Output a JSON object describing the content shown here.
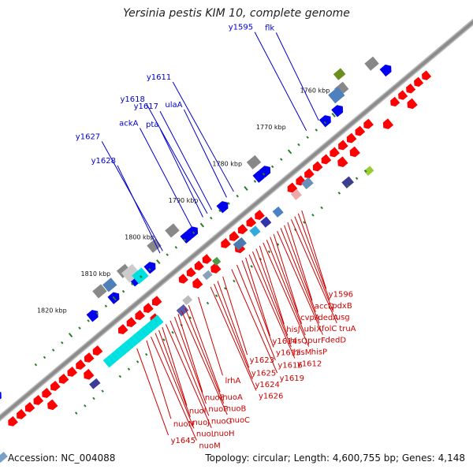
{
  "title": "Yersinia pestis KIM 10, complete genome",
  "footer": {
    "accession": "Accession: NC_004088",
    "summary": "Topology: circular; Length: 4,600,755 bp; Genes: 4,148"
  },
  "colors": {
    "forward_label": "#0000cc",
    "reverse_label": "#cc0000",
    "backbone": "#8c8c8c",
    "tick": "#2a7d2a",
    "cds_reverse": "#ff0000",
    "cds_forward": "#0000ee",
    "gc_cyan": "#00e0e0"
  },
  "ticks": [
    {
      "label": "1760 kbp",
      "pos": 1760
    },
    {
      "label": "1770 kbp",
      "pos": 1770
    },
    {
      "label": "1780 kbp",
      "pos": 1780
    },
    {
      "label": "1790 kbp",
      "pos": 1790
    },
    {
      "label": "1800 kbp",
      "pos": 1800
    },
    {
      "label": "1810 kbp",
      "pos": 1810
    },
    {
      "label": "1820 kbp",
      "pos": 1820
    }
  ],
  "forward_genes": [
    {
      "label": "flk",
      "pos": 1762.6
    },
    {
      "label": "y1595",
      "pos": 1765.4
    },
    {
      "label": "y1611",
      "pos": 1782.0
    },
    {
      "label": "ulaA",
      "pos": 1783.6
    },
    {
      "label": "y1617",
      "pos": 1787.0
    },
    {
      "label": "y1618",
      "pos": 1788.0
    },
    {
      "label": "pta",
      "pos": 1789.0
    },
    {
      "label": "ackA",
      "pos": 1791.6
    },
    {
      "label": "y1627",
      "pos": 1798.2
    },
    {
      "label": "y1628",
      "pos": 1798.8
    }
  ],
  "reverse_genes": [
    {
      "label": "y1596",
      "pos": 1775.0
    },
    {
      "label": "pdxB",
      "pos": 1775.8
    },
    {
      "label": "usg",
      "pos": 1776.6
    },
    {
      "label": "truA",
      "pos": 1777.4
    },
    {
      "label": "accD",
      "pos": 1778.2
    },
    {
      "label": "dedA",
      "pos": 1779.0
    },
    {
      "label": "folC",
      "pos": 1779.8
    },
    {
      "label": "dedD",
      "pos": 1780.6
    },
    {
      "label": "cvpA",
      "pos": 1781.4
    },
    {
      "label": "ubiX",
      "pos": 1782.2
    },
    {
      "label": "purF",
      "pos": 1783.0
    },
    {
      "label": "hisP",
      "pos": 1783.8
    },
    {
      "label": "hisJ",
      "pos": 1784.6
    },
    {
      "label": "hisQ",
      "pos": 1785.4
    },
    {
      "label": "hisM",
      "pos": 1786.2
    },
    {
      "label": "y1612",
      "pos": 1787.0
    },
    {
      "label": "y1614",
      "pos": 1787.8
    },
    {
      "label": "y1613",
      "pos": 1788.6
    },
    {
      "label": "y1616",
      "pos": 1789.8
    },
    {
      "label": "y1619",
      "pos": 1791.0
    },
    {
      "label": "y1623",
      "pos": 1793.0
    },
    {
      "label": "y1625",
      "pos": 1794.2
    },
    {
      "label": "y1624",
      "pos": 1795.0
    },
    {
      "label": "y1626",
      "pos": 1795.8
    },
    {
      "label": "lrhA",
      "pos": 1798.6
    },
    {
      "label": "nuoA",
      "pos": 1800.8
    },
    {
      "label": "nuoB",
      "pos": 1801.6
    },
    {
      "label": "nuoC",
      "pos": 1802.4
    },
    {
      "label": "nuoE",
      "pos": 1803.2
    },
    {
      "label": "nuoF",
      "pos": 1804.0
    },
    {
      "label": "nuoG",
      "pos": 1805.0
    },
    {
      "label": "nuoH",
      "pos": 1806.0
    },
    {
      "label": "nuoI",
      "pos": 1806.8
    },
    {
      "label": "nuoJ",
      "pos": 1807.6
    },
    {
      "label": "nuoL",
      "pos": 1808.4
    },
    {
      "label": "nuoM",
      "pos": 1809.4
    },
    {
      "label": "nuoN",
      "pos": 1810.4
    },
    {
      "label": "y1645",
      "pos": 1812.6
    }
  ]
}
